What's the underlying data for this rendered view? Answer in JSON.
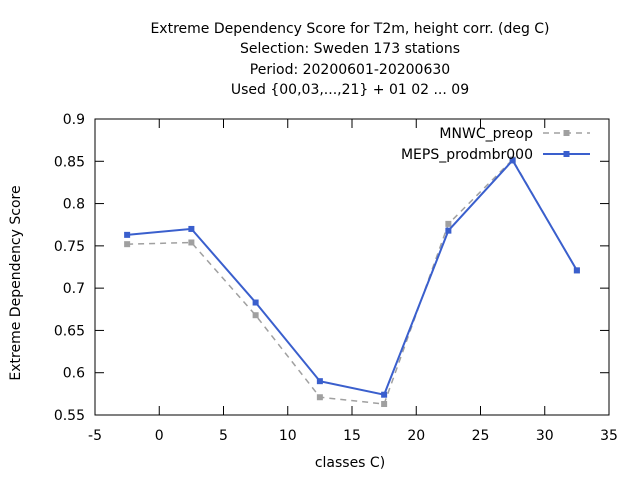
{
  "chart_data": {
    "type": "line",
    "title_lines": [
      "Extreme Dependency Score  for T2m, height corr. (deg C)",
      "Selection: Sweden    173 stations",
      "Period: 20200601-20200630",
      "Used {00,03,...,21} + 01 02 ... 09"
    ],
    "xlabel": "classes C)",
    "ylabel": "Extreme Dependency Score",
    "xlim": [
      -5,
      35
    ],
    "ylim": [
      0.55,
      0.9
    ],
    "xticks": [
      "-5",
      "0",
      "5",
      "10",
      "15",
      "20",
      "25",
      "30",
      "35"
    ],
    "yticks": [
      "0.55",
      "0.6",
      "0.65",
      "0.7",
      "0.75",
      "0.8",
      "0.85",
      "0.9"
    ],
    "x": [
      -2.5,
      2.5,
      7.5,
      12.5,
      17.5,
      22.5,
      27.5,
      32.5
    ],
    "series": [
      {
        "name": "MNWC_preop",
        "color": "#a0a0a0",
        "dash": true,
        "values": [
          0.752,
          0.754,
          0.668,
          0.571,
          0.563,
          0.776,
          0.852,
          0.721
        ]
      },
      {
        "name": "MEPS_prodmbr000",
        "color": "#3a5fcd",
        "dash": false,
        "values": [
          0.763,
          0.77,
          0.683,
          0.59,
          0.574,
          0.768,
          0.851,
          0.721
        ]
      }
    ],
    "legend": "top-right",
    "grid": false
  }
}
